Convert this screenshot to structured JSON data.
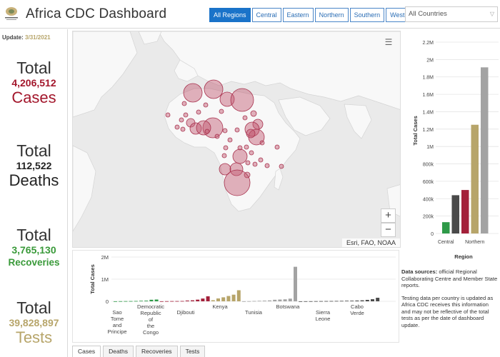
{
  "header": {
    "title": "Africa CDC Dashboard",
    "regions": [
      "All Regions",
      "Central",
      "Eastern",
      "Northern",
      "Southern",
      "Western"
    ],
    "active_region": "All Regions",
    "country_select": "All Countries",
    "logo_icon": "africa-cdc-logo-icon"
  },
  "stats": {
    "update_label": "Update:",
    "update_date": "3/31/2021",
    "cases": {
      "total": "Total",
      "value": "4,206,512",
      "label": "Cases",
      "color": "#a3172c"
    },
    "deaths": {
      "total": "Total",
      "value": "112,522",
      "label": "Deaths",
      "color": "#222222"
    },
    "recoveries": {
      "total": "Total",
      "value": "3,765,130",
      "label": "Recoveries",
      "color": "#3a9a3a"
    },
    "tests": {
      "total": "Total",
      "value": "39,828,897",
      "label": "Tests",
      "color": "#b7a56a"
    }
  },
  "map": {
    "attribution": "Esri, FAO, NOAA",
    "zoom_in": "+",
    "zoom_out": "−",
    "layer_icon": "layer-list-icon",
    "bubble_color": "#c0566e"
  },
  "chart_data": [
    {
      "type": "bar",
      "ylabel": "Total Cases",
      "xlabel": "Region",
      "ylim": [
        0,
        2200000
      ],
      "yticks": [
        "0",
        "200k",
        "400k",
        "600k",
        "800k",
        "1M",
        "1.2M",
        "1.4M",
        "1.6M",
        "1.8M",
        "2M",
        "2.2M"
      ],
      "categories": [
        "Central",
        "",
        "",
        "Northern",
        ""
      ],
      "values": [
        130000,
        440000,
        500000,
        1250000,
        1910000
      ],
      "colors": [
        "#2e9a48",
        "#4a4a4a",
        "#a3203a",
        "#b7a56a",
        "#a3a3a3"
      ],
      "grid": true
    },
    {
      "type": "bar",
      "ylabel": "Total Cases",
      "ylim": [
        0,
        2000000
      ],
      "yticks": [
        "0",
        "1M",
        "2M"
      ],
      "xtick_labels": [
        "Sao Tome and Principe",
        "Democratic Republic of the Congo",
        "Djibouti",
        "Kenya",
        "Tunisia",
        "Botswana",
        "Sierra Leone",
        "Cabo Verde"
      ],
      "groups": [
        {
          "region": "Central",
          "color": "#2e9a48",
          "values": [
            2000,
            6000,
            9000,
            11000,
            15000,
            24000,
            30000,
            70000,
            80000
          ]
        },
        {
          "region": "Eastern",
          "color": "#a3203a",
          "values": [
            3000,
            7000,
            10000,
            11000,
            14000,
            34000,
            45000,
            75000,
            125000,
            225000
          ]
        },
        {
          "region": "Northern",
          "color": "#b7a56a",
          "values": [
            50000,
            130000,
            180000,
            240000,
            300000,
            500000
          ]
        },
        {
          "region": "Southern",
          "color": "#a3a3a3",
          "values": [
            3000,
            7000,
            15000,
            22000,
            30000,
            40000,
            70000,
            80000,
            90000,
            120000,
            1560000
          ]
        },
        {
          "region": "Western",
          "color": "#4a4a4a",
          "values": [
            2000,
            4000,
            5000,
            8000,
            10000,
            12000,
            14000,
            17000,
            20000,
            25000,
            28000,
            35000,
            45000,
            65000,
            95000,
            160000
          ]
        }
      ],
      "grid": true
    }
  ],
  "notes": {
    "sources_title": "Data sources:",
    "sources_text": "official Regional Collaborating Centre and Member State reports.",
    "testing_text": "Testing data per country is updated as Africa CDC receives this information and may not be reflective of the total tests as per the date of dashboard update."
  },
  "tabs": [
    "Cases",
    "Deaths",
    "Recoveries",
    "Tests"
  ],
  "active_tab": "Cases"
}
